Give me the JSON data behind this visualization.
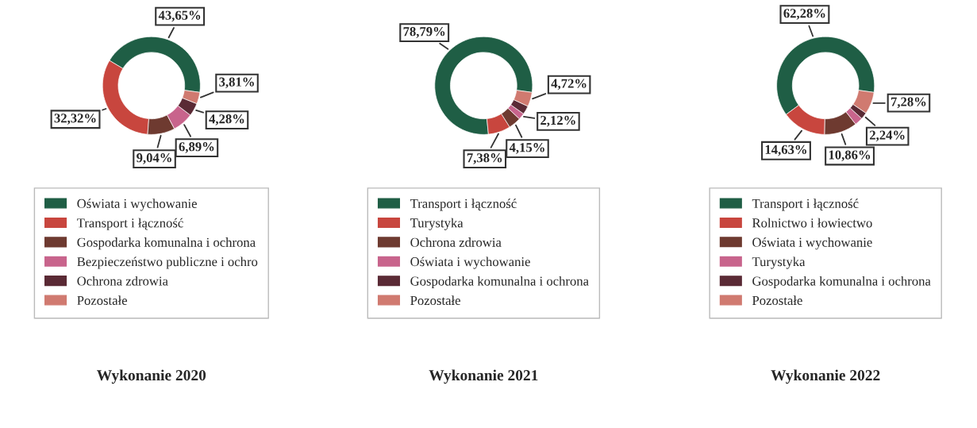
{
  "chart_data": [
    {
      "type": "donut",
      "title": "Wykonanie 2020",
      "categories": [
        "Oświata i wychowanie",
        "Transport i łączność",
        "Gospodarka komunalna i ochrona",
        "Bezpieczeństwo publiczne i ochro",
        "Ochrona zdrowia",
        "Pozostałe"
      ],
      "values": [
        43.65,
        32.32,
        9.04,
        6.89,
        4.28,
        3.81
      ],
      "value_labels": [
        "43,65%",
        "32,32%",
        "9,04%",
        "6,89%",
        "4,28%",
        "3,81%"
      ],
      "colors": [
        "#1f5e45",
        "#c8463e",
        "#6e3a30",
        "#c8648c",
        "#5a2a35",
        "#d07a70"
      ],
      "legend": "bottom"
    },
    {
      "type": "donut",
      "title": "Wykonanie 2021",
      "categories": [
        "Transport i łączność",
        "Turystyka",
        "Ochrona zdrowia",
        "Oświata i wychowanie",
        "Gospodarka komunalna i ochrona",
        "Pozostałe"
      ],
      "values": [
        78.79,
        7.38,
        4.15,
        2.12,
        2.84,
        4.72
      ],
      "value_labels": [
        "78,79%",
        "7,38%",
        "4,15%",
        "2,12%",
        null,
        "4,72%"
      ],
      "colors": [
        "#1f5e45",
        "#c8463e",
        "#6e3a30",
        "#c8648c",
        "#5a2a35",
        "#d07a70"
      ],
      "legend": "bottom"
    },
    {
      "type": "donut",
      "title": "Wykonanie 2022",
      "categories": [
        "Transport i łączność",
        "Rolnictwo i łowiectwo",
        "Oświata i wychowanie",
        "Turystyka",
        "Gospodarka komunalna i ochrona",
        "Pozostałe"
      ],
      "values": [
        62.28,
        14.63,
        10.86,
        2.71,
        2.24,
        7.28
      ],
      "value_labels": [
        "62,28%",
        "14,63%",
        "10,86%",
        null,
        "2,24%",
        "7,28%"
      ],
      "colors": [
        "#1f5e45",
        "#c8463e",
        "#6e3a30",
        "#c8648c",
        "#5a2a35",
        "#d07a70"
      ],
      "legend": "bottom"
    }
  ]
}
